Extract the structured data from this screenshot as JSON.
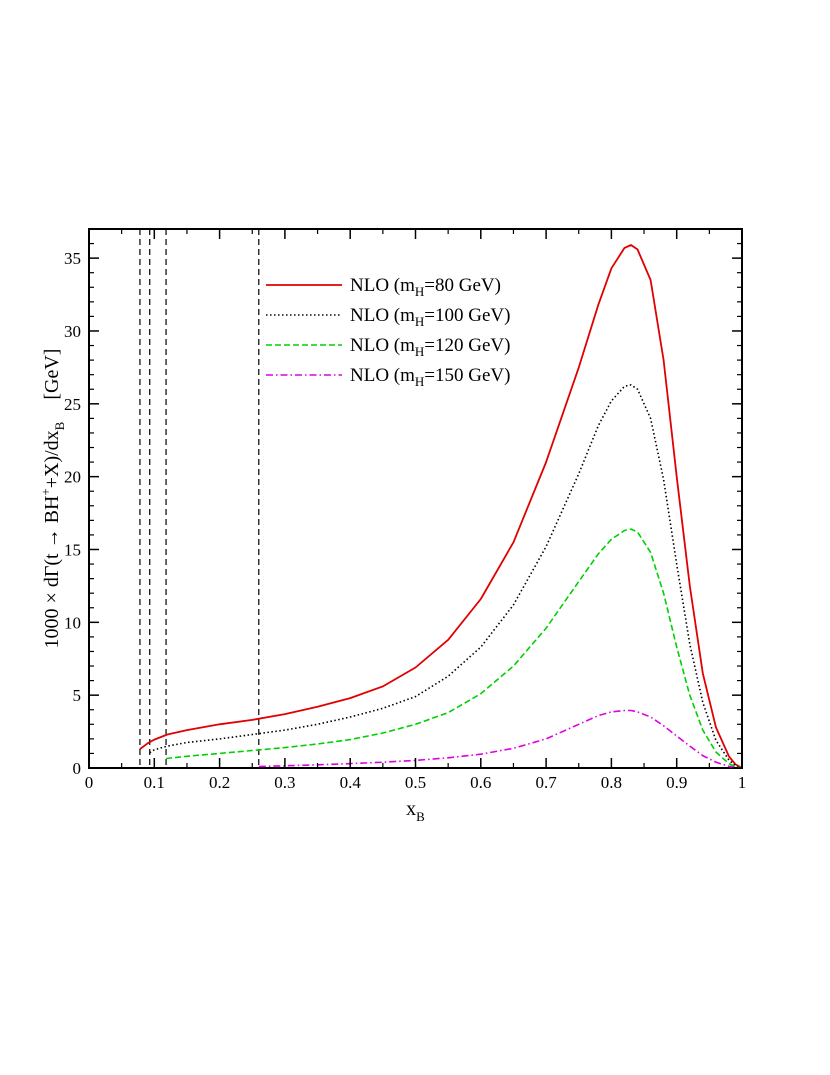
{
  "chart_data": {
    "type": "line",
    "xlabel": "x",
    "xlabel_sub": "B",
    "ylabel": "1000 × dΓ(t → BH+ +X)/dx",
    "ylabel_parts": {
      "prefix": "1000 × dΓ(t → BH",
      "sup": "+",
      "middle": "+X)/dx",
      "sub": "B",
      "unit": "[GeV]"
    },
    "xlim": [
      0,
      1
    ],
    "ylim": [
      0,
      37
    ],
    "xticks": [
      "0",
      "0.1",
      "0.2",
      "0.3",
      "0.4",
      "0.5",
      "0.6",
      "0.7",
      "0.8",
      "0.9",
      "1"
    ],
    "yticks": [
      "0",
      "5",
      "10",
      "15",
      "20",
      "25",
      "30",
      "35"
    ],
    "grid": false,
    "legend_position": "top-center",
    "vertical_lines": [
      0.078,
      0.093,
      0.118,
      0.26
    ],
    "series": [
      {
        "name": "NLO (mH=80 GeV)",
        "label_parts": {
          "pre": "NLO (m",
          "sub": "H",
          "post": "=80 GeV)"
        },
        "color": "#e00000",
        "style": "solid",
        "x": [
          0.078,
          0.09,
          0.1,
          0.12,
          0.15,
          0.2,
          0.25,
          0.3,
          0.35,
          0.4,
          0.45,
          0.5,
          0.55,
          0.6,
          0.65,
          0.7,
          0.75,
          0.78,
          0.8,
          0.82,
          0.83,
          0.84,
          0.86,
          0.88,
          0.9,
          0.92,
          0.94,
          0.96,
          0.98,
          0.99,
          1.0
        ],
        "y": [
          1.3,
          1.7,
          1.95,
          2.3,
          2.6,
          3.0,
          3.3,
          3.7,
          4.2,
          4.8,
          5.6,
          6.9,
          8.8,
          11.6,
          15.5,
          21.0,
          27.5,
          31.8,
          34.3,
          35.7,
          35.9,
          35.6,
          33.5,
          28.0,
          20.0,
          12.5,
          6.5,
          2.8,
          0.8,
          0.25,
          0.0
        ]
      },
      {
        "name": "NLO (mH=100 GeV)",
        "label_parts": {
          "pre": "NLO (m",
          "sub": "H",
          "post": "=100 GeV)"
        },
        "color": "#000000",
        "style": "dotted",
        "x": [
          0.093,
          0.1,
          0.12,
          0.15,
          0.2,
          0.25,
          0.3,
          0.35,
          0.4,
          0.45,
          0.5,
          0.55,
          0.6,
          0.65,
          0.7,
          0.75,
          0.78,
          0.8,
          0.82,
          0.83,
          0.84,
          0.86,
          0.88,
          0.9,
          0.92,
          0.94,
          0.96,
          0.98,
          0.99,
          1.0
        ],
        "y": [
          1.05,
          1.25,
          1.5,
          1.75,
          2.0,
          2.3,
          2.6,
          3.0,
          3.5,
          4.1,
          4.9,
          6.3,
          8.3,
          11.2,
          15.2,
          20.2,
          23.5,
          25.2,
          26.2,
          26.3,
          26.0,
          24.0,
          19.8,
          14.0,
          8.5,
          4.5,
          1.9,
          0.55,
          0.15,
          0.0
        ]
      },
      {
        "name": "NLO (mH=120 GeV)",
        "label_parts": {
          "pre": "NLO (m",
          "sub": "H",
          "post": "=120 GeV)"
        },
        "color": "#00d000",
        "style": "dashed",
        "x": [
          0.118,
          0.15,
          0.2,
          0.25,
          0.3,
          0.35,
          0.4,
          0.45,
          0.5,
          0.55,
          0.6,
          0.65,
          0.7,
          0.75,
          0.78,
          0.8,
          0.82,
          0.83,
          0.84,
          0.86,
          0.88,
          0.9,
          0.92,
          0.94,
          0.96,
          0.98,
          0.99,
          1.0
        ],
        "y": [
          0.65,
          0.8,
          1.0,
          1.2,
          1.4,
          1.65,
          1.95,
          2.4,
          3.0,
          3.8,
          5.1,
          7.0,
          9.6,
          12.8,
          14.7,
          15.7,
          16.3,
          16.4,
          16.2,
          14.8,
          12.0,
          8.3,
          5.0,
          2.6,
          1.1,
          0.3,
          0.08,
          0.0
        ]
      },
      {
        "name": "NLO (mH=150 GeV)",
        "label_parts": {
          "pre": "NLO (m",
          "sub": "H",
          "post": "=150 GeV)"
        },
        "color": "#e000e0",
        "style": "dashdot",
        "x": [
          0.26,
          0.3,
          0.35,
          0.4,
          0.45,
          0.5,
          0.55,
          0.6,
          0.65,
          0.7,
          0.75,
          0.78,
          0.8,
          0.82,
          0.83,
          0.84,
          0.86,
          0.88,
          0.9,
          0.92,
          0.94,
          0.96,
          0.98,
          0.99,
          1.0
        ],
        "y": [
          0.1,
          0.15,
          0.22,
          0.3,
          0.4,
          0.52,
          0.7,
          0.95,
          1.35,
          2.0,
          3.0,
          3.6,
          3.85,
          3.95,
          3.95,
          3.85,
          3.5,
          2.9,
          2.2,
          1.5,
          0.85,
          0.4,
          0.12,
          0.03,
          0.0
        ]
      }
    ]
  }
}
